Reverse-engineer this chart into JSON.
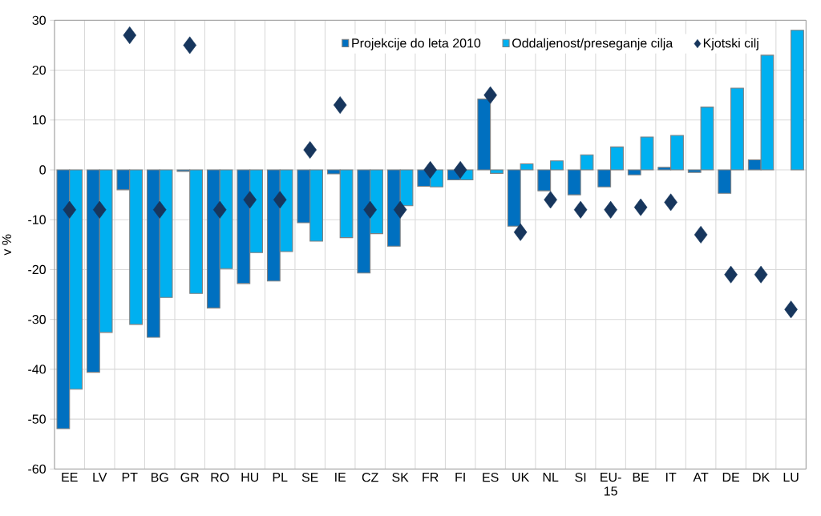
{
  "chart_data": {
    "type": "bar",
    "ylabel": "v %",
    "categories": [
      "EE",
      "LV",
      "PT",
      "BG",
      "GR",
      "RO",
      "HU",
      "PL",
      "SE",
      "IE",
      "CZ",
      "SK",
      "FR",
      "FI",
      "ES",
      "UK",
      "NL",
      "SI",
      "EU-15",
      "BE",
      "IT",
      "AT",
      "DE",
      "DK",
      "LU"
    ],
    "series": [
      {
        "name": "Projekcije do leta 2010",
        "color": "#0070c0",
        "values": [
          -51.9,
          -40.6,
          -4,
          -33.6,
          -0.3,
          -27.7,
          -22.8,
          -22.3,
          -10.6,
          -0.8,
          -20.7,
          -15.3,
          -3.3,
          -2,
          14.2,
          -11.3,
          -4.2,
          -5,
          -3.4,
          -1,
          0.5,
          -0.5,
          -4.7,
          2,
          null
        ]
      },
      {
        "name": "Oddaljenost/preseganje cilja",
        "color": "#00b0f0",
        "values": [
          -44,
          -32.6,
          -31,
          -25.6,
          -24.8,
          -19.8,
          -16.6,
          -16.4,
          -14.3,
          -13.6,
          -12.8,
          -7.2,
          -3.4,
          -2,
          -0.7,
          1.2,
          1.8,
          3,
          4.6,
          6.6,
          6.9,
          12.6,
          16.4,
          23,
          28
        ]
      },
      {
        "name": "Kjotski cilj",
        "type": "scatter",
        "color": "#17365d",
        "marker": "diamond",
        "values": [
          -8,
          -8,
          27,
          -8,
          25,
          -8,
          -6,
          -6,
          4,
          13,
          -8,
          -8,
          0,
          0,
          15,
          -12.5,
          -6,
          -8,
          -8,
          -7.5,
          -6.5,
          -13,
          -21,
          -21,
          -28
        ]
      }
    ],
    "ylim": [
      -60,
      30
    ],
    "yticks": [
      -60,
      -50,
      -40,
      -30,
      -20,
      -10,
      0,
      10,
      20,
      30
    ],
    "grid": true,
    "legend": "top right"
  }
}
